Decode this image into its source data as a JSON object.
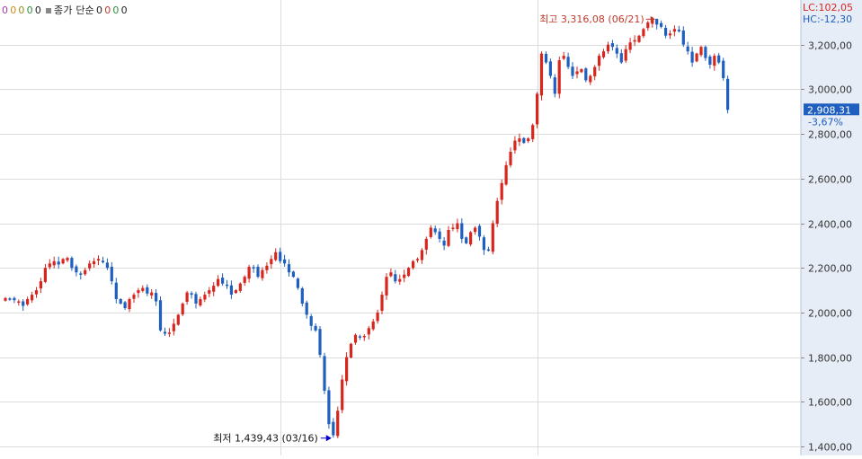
{
  "legend": {
    "items": [
      {
        "text": "0",
        "color": "#a03ca8"
      },
      {
        "text": "0",
        "color": "#c98c16"
      },
      {
        "text": "0",
        "color": "#9a8a1c"
      },
      {
        "text": "0",
        "color": "#2e8b3a"
      },
      {
        "text": "0",
        "color": "#222222"
      },
      {
        "text": "종가 단순",
        "color": "#222222"
      },
      {
        "text": "0",
        "color": "#222222"
      },
      {
        "text": "0",
        "color": "#c0392b"
      },
      {
        "text": "0",
        "color": "#2e8b3a"
      },
      {
        "text": "0",
        "color": "#222222"
      }
    ]
  },
  "corner": {
    "lc": "LC:102,05",
    "hc": "HC:-12,30"
  },
  "colors": {
    "up": "#d7261e",
    "down": "#1f5fbf",
    "axis_bg": "#e7edf7",
    "grid": "#dcdcdc",
    "max_annotation": "#c0392b",
    "min_annotation": "#0000c8"
  },
  "price_tag": {
    "value": "2,908,31",
    "change": "-3,67%"
  },
  "chart_data": {
    "type": "candlestick",
    "ylim": [
      1360,
      3400
    ],
    "yticks": [
      {
        "value": 1400,
        "label": "1,400,00"
      },
      {
        "value": 1600,
        "label": "1,600,00"
      },
      {
        "value": 1800,
        "label": "1,800,00"
      },
      {
        "value": 2000,
        "label": "2,000,00"
      },
      {
        "value": 2200,
        "label": "2,200,00"
      },
      {
        "value": 2400,
        "label": "2,400,00"
      },
      {
        "value": 2600,
        "label": "2,600,00"
      },
      {
        "value": 2800,
        "label": "2,800,00"
      },
      {
        "value": 3000,
        "label": "3,000,00"
      },
      {
        "value": 3200,
        "label": "3,200,00"
      }
    ],
    "max_label": "최고 3,316,08 (06/21)",
    "min_label": "최저 1,439,43 (03/16)",
    "max_value": 3316.08,
    "min_value": 1439.43,
    "max_index": 147,
    "min_index": 74,
    "vertical_grid_indices": [
      62,
      120
    ],
    "close_path": [
      2065,
      2060,
      2055,
      2050,
      2030,
      2060,
      2080,
      2100,
      2140,
      2200,
      2220,
      2230,
      2215,
      2240,
      2245,
      2200,
      2180,
      2170,
      2190,
      2220,
      2230,
      2240,
      2225,
      2200,
      2140,
      2060,
      2040,
      2020,
      2060,
      2080,
      2100,
      2110,
      2085,
      2090,
      2050,
      1920,
      1905,
      1910,
      1950,
      1990,
      2040,
      2090,
      2080,
      2040,
      2060,
      2080,
      2100,
      2120,
      2150,
      2130,
      2120,
      2080,
      2100,
      2130,
      2160,
      2205,
      2200,
      2160,
      2190,
      2210,
      2240,
      2270,
      2230,
      2220,
      2180,
      2160,
      2110,
      2040,
      1990,
      1940,
      1920,
      1810,
      1650,
      1500,
      1450,
      1560,
      1700,
      1800,
      1860,
      1900,
      1890,
      1895,
      1930,
      1960,
      2000,
      2080,
      2160,
      2180,
      2140,
      2150,
      2170,
      2200,
      2230,
      2240,
      2280,
      2330,
      2380,
      2360,
      2330,
      2300,
      2370,
      2380,
      2400,
      2330,
      2310,
      2360,
      2380,
      2340,
      2280,
      2280,
      2400,
      2500,
      2580,
      2660,
      2720,
      2770,
      2780,
      2760,
      2780,
      2840,
      2980,
      3160,
      3120,
      3060,
      2980,
      3130,
      3150,
      3100,
      3060,
      3080,
      3090,
      3040,
      3060,
      3100,
      3150,
      3170,
      3200,
      3190,
      3160,
      3120,
      3180,
      3210,
      3220,
      3240,
      3270,
      3300,
      3316,
      3290,
      3280,
      3240,
      3250,
      3270,
      3260,
      3200,
      3170,
      3120,
      3160,
      3190,
      3140,
      3110,
      3150,
      3120,
      3050,
      2908
    ]
  }
}
